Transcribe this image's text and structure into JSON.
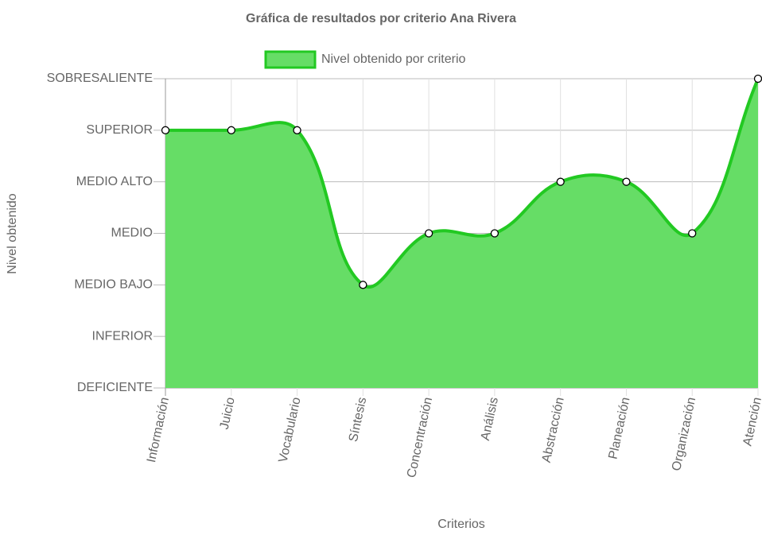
{
  "chart_data": {
    "type": "line",
    "title": "Gráfica de resultados por criterio Ana Rivera",
    "x_label": "Criterios",
    "y_label": "Nivel obtenido",
    "categories": [
      "Información",
      "Juicio",
      "Vocabulario",
      "Síntesis",
      "Concentración",
      "Análisis",
      "Abstracción",
      "Planeación",
      "Organización",
      "Atención"
    ],
    "series": [
      {
        "name": "Nivel obtenido por criterio",
        "color": "#22c922",
        "fill_color": "#66dd66",
        "values": [
          6,
          6,
          6,
          3,
          4,
          4,
          5,
          5,
          4,
          7
        ]
      }
    ],
    "fill": true,
    "legend": "top",
    "grid": true,
    "ylim": [
      1,
      7
    ],
    "yticks": [
      {
        "value": 1,
        "label": "DEFICIENTE"
      },
      {
        "value": 2,
        "label": "INFERIOR"
      },
      {
        "value": 3,
        "label": "MEDIO BAJO"
      },
      {
        "value": 4,
        "label": "MEDIO"
      },
      {
        "value": 5,
        "label": "MEDIO ALTO"
      },
      {
        "value": 6,
        "label": "SUPERIOR"
      },
      {
        "value": 7,
        "label": "SOBRESALIENTE"
      }
    ]
  }
}
